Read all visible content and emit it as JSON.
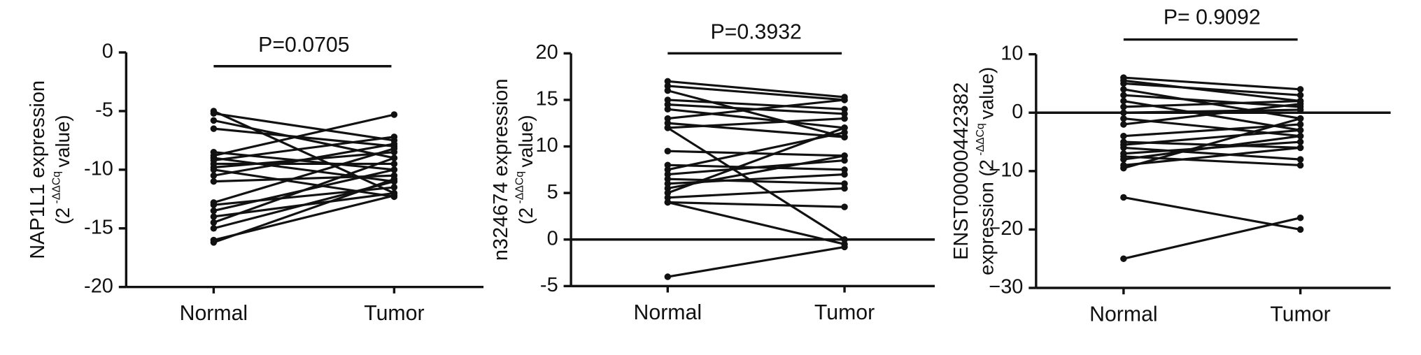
{
  "chart_data": [
    {
      "type": "paired",
      "annotation": "P=0.0705",
      "ylabel": "NAP1L1 expression",
      "ylabel2": {
        "text": "(2",
        "exponent": "-ΔΔCq",
        "tail": "value)"
      },
      "categories": [
        "Normal",
        "Tumor"
      ],
      "color": "#111111",
      "zero_line": false,
      "ylim": [
        -20,
        0
      ],
      "yticks": [
        0,
        -5,
        -10,
        -15,
        -20
      ],
      "series": [
        {
          "values": [
            -5,
            -12
          ]
        },
        {
          "values": [
            -5.2,
            -7.5
          ]
        },
        {
          "values": [
            -5.8,
            -9
          ]
        },
        {
          "values": [
            -6.5,
            -8
          ]
        },
        {
          "values": [
            -8.5,
            -10
          ]
        },
        {
          "values": [
            -8.8,
            -5.3
          ]
        },
        {
          "values": [
            -9,
            -11
          ]
        },
        {
          "values": [
            -9.2,
            -7.2
          ]
        },
        {
          "values": [
            -9.5,
            -9.5
          ]
        },
        {
          "values": [
            -9.8,
            -8.5
          ]
        },
        {
          "values": [
            -10,
            -12.3
          ]
        },
        {
          "values": [
            -10.5,
            -7.8
          ]
        },
        {
          "values": [
            -11,
            -10.5
          ]
        },
        {
          "values": [
            -12.8,
            -8.2
          ]
        },
        {
          "values": [
            -13,
            -11.5
          ]
        },
        {
          "values": [
            -13.5,
            -10
          ]
        },
        {
          "values": [
            -14,
            -12
          ]
        },
        {
          "values": [
            -14.5,
            -9
          ]
        },
        {
          "values": [
            -15,
            -11
          ]
        },
        {
          "values": [
            -16,
            -12.2
          ]
        },
        {
          "values": [
            -16.2,
            -10.8
          ]
        }
      ]
    },
    {
      "type": "paired",
      "annotation": "P=0.3932",
      "ylabel": "n324674 expression",
      "ylabel2": {
        "text": "(2",
        "exponent": "-ΔΔCq",
        "tail": "value)"
      },
      "categories": [
        "Normal",
        "Tumor"
      ],
      "color": "#111111",
      "zero_line": true,
      "ylim": [
        -5,
        20
      ],
      "yticks": [
        20,
        15,
        10,
        5,
        0,
        -5
      ],
      "series": [
        {
          "values": [
            17,
            15.3
          ]
        },
        {
          "values": [
            16.5,
            15
          ]
        },
        {
          "values": [
            16,
            11
          ]
        },
        {
          "values": [
            15,
            14
          ]
        },
        {
          "values": [
            14.5,
            13.5
          ]
        },
        {
          "values": [
            14,
            12
          ]
        },
        {
          "values": [
            13,
            15
          ]
        },
        {
          "values": [
            12.5,
            11
          ]
        },
        {
          "values": [
            12,
            13
          ]
        },
        {
          "values": [
            12,
            0
          ]
        },
        {
          "values": [
            9.5,
            9
          ]
        },
        {
          "values": [
            8,
            7.5
          ]
        },
        {
          "values": [
            7.5,
            11.5
          ]
        },
        {
          "values": [
            7,
            8.5
          ]
        },
        {
          "values": [
            6.5,
            6
          ]
        },
        {
          "values": [
            6,
            7
          ]
        },
        {
          "values": [
            5.5,
            9
          ]
        },
        {
          "values": [
            5,
            12
          ]
        },
        {
          "values": [
            4.5,
            5.5
          ]
        },
        {
          "values": [
            4,
            3.5
          ]
        },
        {
          "values": [
            4,
            -0.5
          ]
        },
        {
          "values": [
            -4,
            -0.8
          ]
        }
      ]
    },
    {
      "type": "paired",
      "annotation": "P= 0.9092",
      "ylabel": "ENST00000442382",
      "ylabel2": {
        "text": "expression (2",
        "exponent": "-ΔΔCq",
        "tail": "value)"
      },
      "categories": [
        "Normal",
        "Tumor"
      ],
      "color": "#111111",
      "zero_line": true,
      "ylim": [
        -30,
        10
      ],
      "yticks": [
        10,
        0,
        {
          "value": -10,
          "label": "−10"
        },
        {
          "value": -20,
          "label": "−20"
        },
        {
          "value": -30,
          "label": "−30"
        }
      ],
      "series": [
        {
          "values": [
            6,
            4
          ]
        },
        {
          "values": [
            5.5,
            2
          ]
        },
        {
          "values": [
            5,
            3
          ]
        },
        {
          "values": [
            4,
            -1
          ]
        },
        {
          "values": [
            3,
            1
          ]
        },
        {
          "values": [
            2,
            -3
          ]
        },
        {
          "values": [
            1,
            2
          ]
        },
        {
          "values": [
            0,
            0.5
          ]
        },
        {
          "values": [
            -1,
            -4
          ]
        },
        {
          "values": [
            -2,
            1.5
          ]
        },
        {
          "values": [
            -4,
            -2
          ]
        },
        {
          "values": [
            -5,
            -6
          ]
        },
        {
          "values": [
            -5.5,
            -3
          ]
        },
        {
          "values": [
            -6,
            -8
          ]
        },
        {
          "values": [
            -7,
            -5
          ]
        },
        {
          "values": [
            -7.5,
            -9
          ]
        },
        {
          "values": [
            -8,
            -4
          ]
        },
        {
          "values": [
            -9,
            -6
          ]
        },
        {
          "values": [
            -9.5,
            -1
          ]
        },
        {
          "values": [
            -14.5,
            -20
          ]
        },
        {
          "values": [
            -25,
            -18
          ]
        }
      ]
    }
  ]
}
